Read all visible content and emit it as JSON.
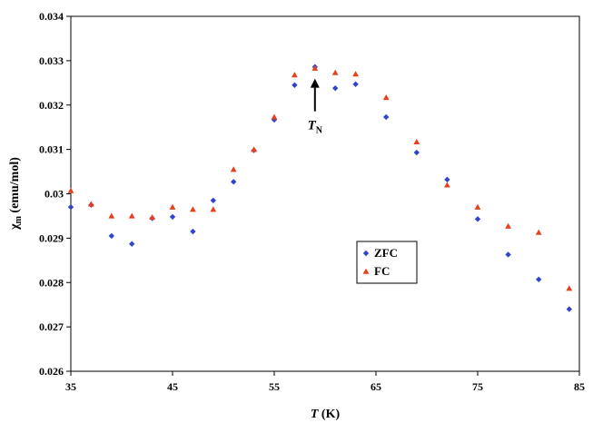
{
  "chart_data": {
    "type": "scatter",
    "title": "",
    "xlabel": {
      "italic": "T",
      "rest": " (K)"
    },
    "ylabel": {
      "main": "χ",
      "sub": "m",
      "rest": " (emu/mol)"
    },
    "xlim": [
      35,
      85
    ],
    "ylim": [
      0.026,
      0.034
    ],
    "x_ticks": [
      "35",
      "45",
      "55",
      "65",
      "75",
      "85"
    ],
    "y_ticks": [
      "0.026",
      "0.027",
      "0.028",
      "0.029",
      "0.03",
      "0.031",
      "0.032",
      "0.033",
      "0.034"
    ],
    "grid": false,
    "legend_position": "center-right",
    "series": [
      {
        "name": "ZFC",
        "marker": "diamond",
        "color": "#3344cc",
        "x": [
          35,
          37,
          39,
          41,
          43,
          45,
          47,
          49,
          51,
          53,
          55,
          57,
          59,
          61,
          63,
          66,
          69,
          72,
          75,
          78,
          81,
          84
        ],
        "y": [
          0.0297,
          0.02975,
          0.02905,
          0.02887,
          0.02945,
          0.02948,
          0.02915,
          0.02985,
          0.03027,
          0.03098,
          0.03167,
          0.03245,
          0.03286,
          0.03238,
          0.03247,
          0.03173,
          0.03093,
          0.03032,
          0.02943,
          0.02863,
          0.02807,
          0.0274
        ]
      },
      {
        "name": "FC",
        "marker": "triangle",
        "color": "#e8401c",
        "x": [
          35,
          37,
          39,
          41,
          43,
          45,
          47,
          49,
          51,
          53,
          55,
          57,
          59,
          61,
          63,
          66,
          69,
          72,
          75,
          78,
          81,
          84
        ],
        "y": [
          0.03007,
          0.02977,
          0.0295,
          0.0295,
          0.02947,
          0.0297,
          0.02965,
          0.02965,
          0.03055,
          0.031,
          0.03173,
          0.03268,
          0.03283,
          0.03273,
          0.0327,
          0.03217,
          0.03117,
          0.0302,
          0.0297,
          0.02927,
          0.02913,
          0.02787
        ]
      }
    ],
    "annotation": {
      "main": "T",
      "sub": "N",
      "arrow_to": [
        59,
        0.0328
      ]
    }
  }
}
